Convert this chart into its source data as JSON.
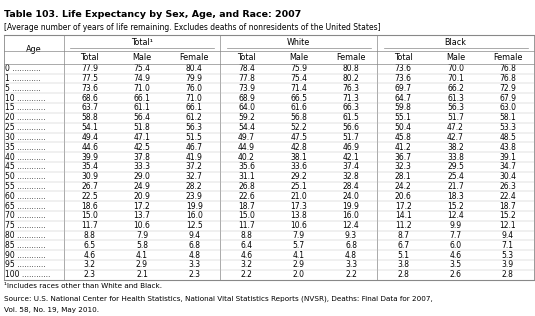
{
  "title": "Table 103. Life Expectancy by Sex, Age, and Race: 2007",
  "subtitle": "[Average number of years of life remaining. Excludes deaths of nonresidents of the United States]",
  "footnote1": "¹Includes races other than White and Black.",
  "footnote2": "Source: U.S. National Center for Health Statistics, National Vital Statistics Reports (NVSR), Deaths: Final Data for 2007,",
  "footnote2_italic": "Deaths: Final Data for 2007,",
  "footnote3": "Vol. 58, No. 19, May 2010.",
  "col_groups": [
    "Total¹",
    "White",
    "Black"
  ],
  "col_sub": [
    "Total",
    "Male",
    "Female"
  ],
  "ages": [
    "0",
    "1",
    "5",
    "10",
    "15",
    "20",
    "25",
    "30",
    "35",
    "40",
    "45",
    "50",
    "55",
    "60",
    "65",
    "70",
    "75",
    "80",
    "85",
    "90",
    "95",
    "100"
  ],
  "data": [
    [
      77.9,
      75.4,
      80.4,
      78.4,
      75.9,
      80.8,
      73.6,
      70.0,
      76.8
    ],
    [
      77.5,
      74.9,
      79.9,
      77.8,
      75.4,
      80.2,
      73.6,
      70.1,
      76.8
    ],
    [
      73.6,
      71.0,
      76.0,
      73.9,
      71.4,
      76.3,
      69.7,
      66.2,
      72.9
    ],
    [
      68.6,
      66.1,
      71.0,
      68.9,
      66.5,
      71.3,
      64.7,
      61.3,
      67.9
    ],
    [
      63.7,
      61.1,
      66.1,
      64.0,
      61.6,
      66.3,
      59.8,
      56.3,
      63.0
    ],
    [
      58.8,
      56.4,
      61.2,
      59.2,
      56.8,
      61.5,
      55.1,
      51.7,
      58.1
    ],
    [
      54.1,
      51.8,
      56.3,
      54.4,
      52.2,
      56.6,
      50.4,
      47.2,
      53.3
    ],
    [
      49.4,
      47.1,
      51.5,
      49.7,
      47.5,
      51.7,
      45.8,
      42.7,
      48.5
    ],
    [
      44.6,
      42.5,
      46.7,
      44.9,
      42.8,
      46.9,
      41.2,
      38.2,
      43.8
    ],
    [
      39.9,
      37.8,
      41.9,
      40.2,
      38.1,
      42.1,
      36.7,
      33.8,
      39.1
    ],
    [
      35.4,
      33.3,
      37.2,
      35.6,
      33.6,
      37.4,
      32.3,
      29.5,
      34.7
    ],
    [
      30.9,
      29.0,
      32.7,
      31.1,
      29.2,
      32.8,
      28.1,
      25.4,
      30.4
    ],
    [
      26.7,
      24.9,
      28.2,
      26.8,
      25.1,
      28.4,
      24.2,
      21.7,
      26.3
    ],
    [
      22.5,
      20.9,
      23.9,
      22.6,
      21.0,
      24.0,
      20.6,
      18.3,
      22.4
    ],
    [
      18.6,
      17.2,
      19.9,
      18.7,
      17.3,
      19.9,
      17.2,
      15.2,
      18.7
    ],
    [
      15.0,
      13.7,
      16.0,
      15.0,
      13.8,
      16.0,
      14.1,
      12.4,
      15.2
    ],
    [
      11.7,
      10.6,
      12.5,
      11.7,
      10.6,
      12.4,
      11.2,
      9.9,
      12.1
    ],
    [
      8.8,
      7.9,
      9.4,
      8.8,
      7.9,
      9.3,
      8.7,
      7.7,
      9.4
    ],
    [
      6.5,
      5.8,
      6.8,
      6.4,
      5.7,
      6.8,
      6.7,
      6.0,
      7.1
    ],
    [
      4.6,
      4.1,
      4.8,
      4.6,
      4.1,
      4.8,
      5.1,
      4.6,
      5.3
    ],
    [
      3.2,
      2.9,
      3.3,
      3.2,
      2.9,
      3.3,
      3.8,
      3.5,
      3.9
    ],
    [
      2.3,
      2.1,
      2.3,
      2.2,
      2.0,
      2.2,
      2.8,
      2.6,
      2.8
    ]
  ],
  "bg_color": "#ffffff",
  "text_color": "#000000",
  "line_color": "#888888",
  "title_fontsize": 6.8,
  "subtitle_fontsize": 5.5,
  "header_fontsize": 5.8,
  "data_fontsize": 5.5,
  "footnote_fontsize": 5.2
}
